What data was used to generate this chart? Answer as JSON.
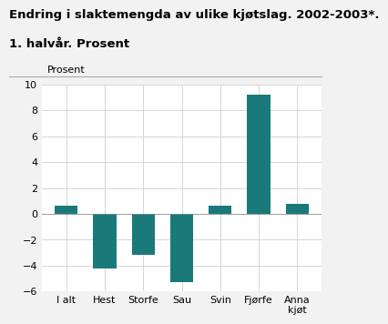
{
  "title_line1": "Endring i slaktemengda av ulike kjøtslag. 2002-2003*.",
  "title_line2": "1. halvår. Prosent",
  "ylabel": "Prosent",
  "categories": [
    "I alt",
    "Hest",
    "Storfe",
    "Sau",
    "Svin",
    "Fjørfe",
    "Anna\nkjøt"
  ],
  "values": [
    0.6,
    -4.2,
    -3.2,
    -5.3,
    0.6,
    9.2,
    0.8
  ],
  "bar_color": "#1a7a7a",
  "ylim": [
    -6,
    10
  ],
  "yticks": [
    -6,
    -4,
    -2,
    0,
    2,
    4,
    6,
    8,
    10
  ],
  "background_color": "#f2f2f2",
  "plot_bg_color": "#ffffff",
  "title_fontsize": 9.5,
  "label_fontsize": 8,
  "tick_fontsize": 8
}
